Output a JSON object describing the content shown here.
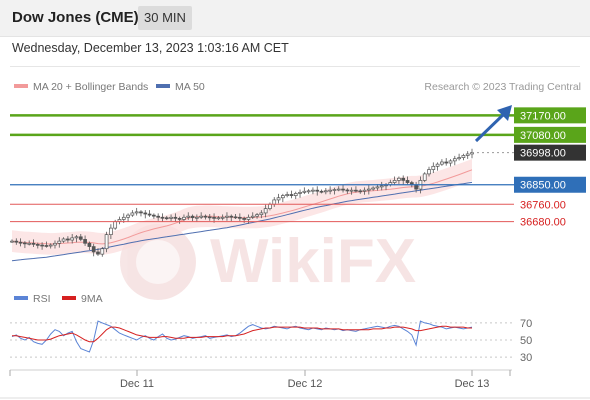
{
  "header": {
    "title": "Dow Jones (CME)",
    "timeframe": "30 MIN"
  },
  "datetime": "Wednesday, December 13, 2023 1:03:16 AM CET",
  "legend": {
    "bb_label": "MA 20 + Bollinger Bands",
    "ma50_label": "MA 50",
    "rsi_label": "RSI",
    "rsi_ma_label": "9MA"
  },
  "research": "Research © 2023 Trading Central",
  "watermark": "WikiFX",
  "colors": {
    "resistance": "#5aa51a",
    "support": "#e25858",
    "pivot": "#2f6fb8",
    "current": "#333333",
    "bb": "#f29a9a",
    "ma50": "#4f6fb0",
    "rsi": "#5b84d6",
    "rsi_ma": "#d62020"
  },
  "chart_data": [
    {
      "type": "candlestick",
      "ylim": [
        36420,
        37250
      ],
      "x_ticks": [
        "Dec 11",
        "Dec 12",
        "Dec 13"
      ],
      "levels": [
        {
          "value": 37170,
          "label": "37170.00",
          "kind": "resistance"
        },
        {
          "value": 37080,
          "label": "37080.00",
          "kind": "resistance"
        },
        {
          "value": 36998,
          "label": "36998.00",
          "kind": "current"
        },
        {
          "value": 36850,
          "label": "36850.00",
          "kind": "pivot"
        },
        {
          "value": 36760,
          "label": "36760.00",
          "kind": "support"
        },
        {
          "value": 36680,
          "label": "36680.00",
          "kind": "support"
        }
      ],
      "close": [
        36590,
        36585,
        36582,
        36578,
        36580,
        36575,
        36572,
        36570,
        36568,
        36572,
        36580,
        36590,
        36600,
        36595,
        36605,
        36610,
        36598,
        36580,
        36565,
        36540,
        36530,
        36555,
        36620,
        36650,
        36680,
        36690,
        36700,
        36710,
        36720,
        36725,
        36720,
        36715,
        36710,
        36705,
        36700,
        36698,
        36695,
        36700,
        36695,
        36690,
        36700,
        36705,
        36698,
        36700,
        36705,
        36702,
        36700,
        36695,
        36698,
        36700,
        36705,
        36702,
        36700,
        36695,
        36690,
        36700,
        36705,
        36712,
        36720,
        36740,
        36760,
        36780,
        36790,
        36800,
        36805,
        36800,
        36810,
        36815,
        36820,
        36822,
        36825,
        36820,
        36818,
        36822,
        36825,
        36828,
        36830,
        36826,
        36824,
        36825,
        36822,
        36820,
        36825,
        36830,
        36835,
        36840,
        36845,
        36850,
        36860,
        36870,
        36880,
        36870,
        36860,
        36850,
        36830,
        36870,
        36900,
        36920,
        36935,
        36945,
        36955,
        36950,
        36960,
        36970,
        36975,
        36985,
        36992,
        36998
      ],
      "ma50": [
        36500,
        36502,
        36504,
        36506,
        36508,
        36510,
        36512,
        36514,
        36516,
        36519,
        36522,
        36525,
        36528,
        36531,
        36534,
        36537,
        36540,
        36543,
        36546,
        36549,
        36552,
        36556,
        36560,
        36564,
        36568,
        36572,
        36576,
        36580,
        36584,
        36588,
        36592,
        36595,
        36598,
        36601,
        36604,
        36607,
        36610,
        36613,
        36616,
        36619,
        36622,
        36625,
        36628,
        36631,
        36634,
        36637,
        36640,
        36643,
        36646,
        36649,
        36652,
        36656,
        36660,
        36664,
        36668,
        36672,
        36676,
        36680,
        36684,
        36688,
        36692,
        36697,
        36702,
        36707,
        36712,
        36717,
        36722,
        36727,
        36732,
        36737,
        36742,
        36746,
        36750,
        36754,
        36758,
        36762,
        36766,
        36770,
        36774,
        36777,
        36780,
        36783,
        36786,
        36789,
        36792,
        36795,
        36798,
        36801,
        36804,
        36807,
        36810,
        36813,
        36816,
        36819,
        36822,
        36825,
        36828,
        36831,
        36834,
        36837,
        36840,
        36843,
        36846,
        36849,
        36852,
        36855,
        36858,
        36861
      ],
      "bb_width": 50
    },
    {
      "type": "line",
      "ylim": [
        15,
        85
      ],
      "y_ticks": [
        70,
        50,
        30
      ],
      "series": [
        {
          "name": "RSI",
          "values": [
            54,
            56,
            52,
            50,
            53,
            48,
            46,
            45,
            50,
            57,
            62,
            60,
            55,
            58,
            60,
            48,
            40,
            38,
            36,
            50,
            72,
            70,
            68,
            66,
            62,
            58,
            56,
            54,
            52,
            50,
            53,
            55,
            52,
            50,
            54,
            57,
            52,
            50,
            51,
            53,
            55,
            54,
            52,
            53,
            54,
            55,
            52,
            53,
            54,
            55,
            56,
            54,
            55,
            58,
            62,
            66,
            68,
            66,
            64,
            63,
            64,
            66,
            65,
            64,
            63,
            65,
            66,
            64,
            63,
            62,
            64,
            63,
            62,
            64,
            63,
            62,
            63,
            61,
            62,
            61,
            60,
            62,
            63,
            64,
            65,
            66,
            65,
            64,
            66,
            67,
            66,
            63,
            60,
            56,
            44,
            72,
            70,
            69,
            67,
            66,
            65,
            63,
            64,
            65,
            64,
            63,
            64,
            65
          ]
        },
        {
          "name": "9MA",
          "values": [
            55,
            55,
            54,
            53,
            52,
            51,
            50,
            50,
            50,
            51,
            53,
            55,
            56,
            57,
            58,
            56,
            53,
            50,
            48,
            48,
            52,
            57,
            62,
            65,
            65,
            64,
            62,
            60,
            58,
            56,
            55,
            54,
            53,
            53,
            53,
            54,
            54,
            53,
            52,
            52,
            52,
            53,
            53,
            53,
            53,
            54,
            54,
            54,
            54,
            54,
            55,
            55,
            55,
            56,
            57,
            59,
            61,
            62,
            63,
            64,
            64,
            65,
            65,
            65,
            65,
            65,
            65,
            65,
            64,
            64,
            64,
            64,
            63,
            63,
            63,
            63,
            63,
            62,
            62,
            62,
            62,
            62,
            62,
            62,
            63,
            63,
            63,
            64,
            64,
            65,
            65,
            65,
            64,
            63,
            61,
            61,
            62,
            63,
            64,
            65,
            66,
            66,
            65,
            65,
            65,
            65,
            64,
            64
          ]
        }
      ]
    }
  ]
}
